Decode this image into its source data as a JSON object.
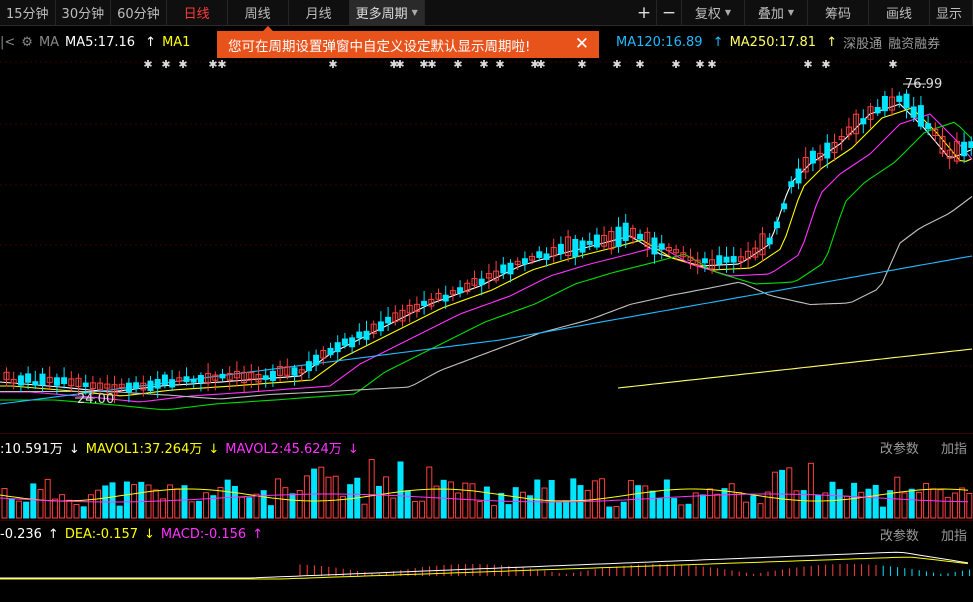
{
  "toolbar": {
    "periods": [
      "15分钟",
      "30分钟",
      "60分钟",
      "日线",
      "周线",
      "月线",
      "更多周期"
    ],
    "active_period": "日线",
    "plus": "+",
    "minus": "−",
    "fuquan": "复权",
    "overlay": "叠加",
    "chips": "筹码",
    "draw": "画线",
    "display": "显示"
  },
  "ma": {
    "expand": "|<",
    "label": "MA",
    "ma5": "MA5:17.16",
    "ma10": "MA1",
    "ma120": "MA120:16.89",
    "ma250": "MA250:17.81",
    "link1": "深股通",
    "link2": "融资融券"
  },
  "tooltip": {
    "text": "您可在周期设置弹窗中自定义设定默认显示周期啦!",
    "close": "✕"
  },
  "price_labels": {
    "high": "76.99",
    "low": "24.00"
  },
  "volume": {
    "vol": ":10.591万",
    "mavol1": "MAVOL1:37.264万",
    "mavol2": "MAVOL2:45.624万",
    "edit": "改参数",
    "add": "加指"
  },
  "macd": {
    "diff": "-0.236",
    "dea": "DEA:-0.157",
    "macd": "MACD:-0.156",
    "edit": "改参数",
    "add": "加指"
  },
  "colors": {
    "up": "#ff4040",
    "down": "#00e5ff",
    "ma5": "#ffffff",
    "ma10": "#ffff00",
    "ma20": "#ff33ff",
    "ma30": "#00dd00",
    "ma60": "#c0c0c0",
    "ma120": "#22bbff",
    "ma250": "#ffff66",
    "tooltip": "#e8531c"
  }
}
